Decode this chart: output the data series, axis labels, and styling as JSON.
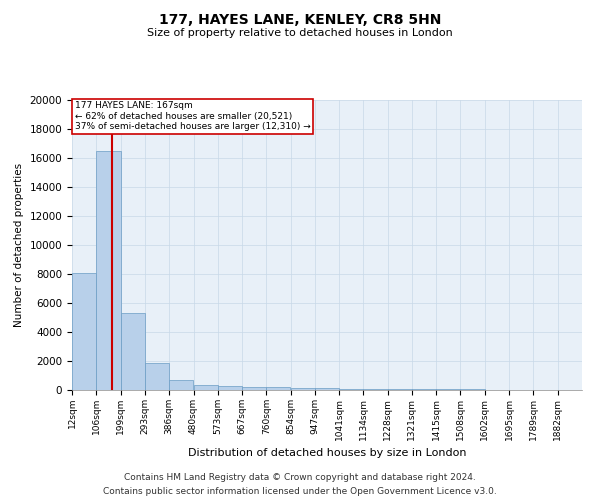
{
  "title1": "177, HAYES LANE, KENLEY, CR8 5HN",
  "title2": "Size of property relative to detached houses in London",
  "xlabel": "Distribution of detached houses by size in London",
  "ylabel": "Number of detached properties",
  "property_label": "177 HAYES LANE: 167sqm",
  "annotation_line1": "← 62% of detached houses are smaller (20,521)",
  "annotation_line2": "37% of semi-detached houses are larger (12,310) →",
  "footer1": "Contains HM Land Registry data © Crown copyright and database right 2024.",
  "footer2": "Contains public sector information licensed under the Open Government Licence v3.0.",
  "bin_labels": [
    "12sqm",
    "106sqm",
    "199sqm",
    "293sqm",
    "386sqm",
    "480sqm",
    "573sqm",
    "667sqm",
    "760sqm",
    "854sqm",
    "947sqm",
    "1041sqm",
    "1134sqm",
    "1228sqm",
    "1321sqm",
    "1415sqm",
    "1508sqm",
    "1602sqm",
    "1695sqm",
    "1789sqm",
    "1882sqm"
  ],
  "bin_edges": [
    12,
    106,
    199,
    293,
    386,
    480,
    573,
    667,
    760,
    854,
    947,
    1041,
    1134,
    1228,
    1321,
    1415,
    1508,
    1602,
    1695,
    1789,
    1882
  ],
  "bar_heights": [
    8100,
    16500,
    5300,
    1850,
    700,
    350,
    280,
    200,
    180,
    150,
    120,
    100,
    80,
    70,
    55,
    45,
    35,
    30,
    25,
    20,
    15
  ],
  "bar_color": "#b8d0ea",
  "bar_edge_color": "#6a9cc4",
  "vline_x": 167,
  "vline_color": "#cc0000",
  "annotation_box_color": "#cc0000",
  "ylim": [
    0,
    20000
  ],
  "yticks": [
    0,
    2000,
    4000,
    6000,
    8000,
    10000,
    12000,
    14000,
    16000,
    18000,
    20000
  ],
  "grid_color": "#c8d8e8",
  "bg_color": "#e8f0f8"
}
